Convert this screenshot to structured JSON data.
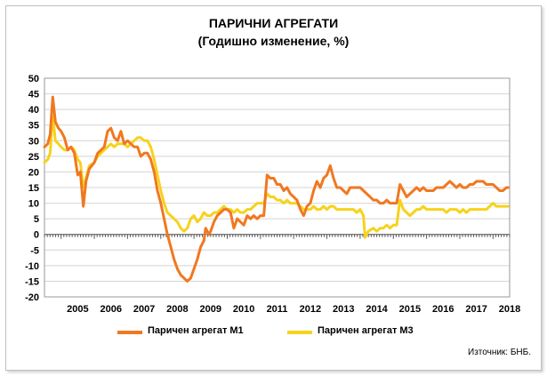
{
  "title": "ПАРИЧНИ АГРЕГАТИ",
  "subtitle": "(Годишно изменение, %)",
  "source": "Източник: БНБ.",
  "colors": {
    "m1": "#f07820",
    "m3": "#f7d21c"
  },
  "chart_data": {
    "type": "line",
    "title": "ПАРИЧНИ АГРЕГАТИ",
    "subtitle": "(Годишно изменение, %)",
    "xlabel": "",
    "ylabel": "",
    "ylim": [
      -20,
      50
    ],
    "yticks": [
      -20,
      -15,
      -10,
      -5,
      0,
      5,
      10,
      15,
      20,
      25,
      30,
      35,
      40,
      45,
      50
    ],
    "xlim": [
      2004.5,
      2018.5
    ],
    "xticks": [
      "2005",
      "2006",
      "2007",
      "2008",
      "2009",
      "2010",
      "2011",
      "2012",
      "2013",
      "2014",
      "2015",
      "2016",
      "2017",
      "2018"
    ],
    "grid": "horizontal",
    "legend": "bottom",
    "series": [
      {
        "name": "Паричен агрегат М1",
        "color": "#f07820",
        "points": [
          [
            2004.5,
            28
          ],
          [
            2004.6,
            29
          ],
          [
            2004.67,
            32
          ],
          [
            2004.75,
            44
          ],
          [
            2004.83,
            36
          ],
          [
            2004.92,
            34
          ],
          [
            2005.0,
            33
          ],
          [
            2005.1,
            31
          ],
          [
            2005.2,
            27
          ],
          [
            2005.3,
            28
          ],
          [
            2005.4,
            26
          ],
          [
            2005.5,
            19
          ],
          [
            2005.58,
            20
          ],
          [
            2005.67,
            9
          ],
          [
            2005.75,
            17
          ],
          [
            2005.85,
            21
          ],
          [
            2006.0,
            23
          ],
          [
            2006.1,
            26
          ],
          [
            2006.2,
            27
          ],
          [
            2006.3,
            28
          ],
          [
            2006.4,
            33
          ],
          [
            2006.5,
            34
          ],
          [
            2006.6,
            31
          ],
          [
            2006.7,
            30
          ],
          [
            2006.8,
            33
          ],
          [
            2006.9,
            29
          ],
          [
            2007.0,
            30
          ],
          [
            2007.1,
            29
          ],
          [
            2007.2,
            28
          ],
          [
            2007.3,
            28
          ],
          [
            2007.4,
            25
          ],
          [
            2007.5,
            26
          ],
          [
            2007.6,
            26
          ],
          [
            2007.7,
            24
          ],
          [
            2007.8,
            20
          ],
          [
            2007.9,
            14
          ],
          [
            2008.0,
            10
          ],
          [
            2008.1,
            5
          ],
          [
            2008.2,
            0
          ],
          [
            2008.3,
            -4
          ],
          [
            2008.4,
            -8
          ],
          [
            2008.5,
            -11
          ],
          [
            2008.6,
            -13
          ],
          [
            2008.7,
            -14
          ],
          [
            2008.8,
            -15
          ],
          [
            2008.9,
            -14
          ],
          [
            2009.0,
            -11
          ],
          [
            2009.1,
            -8
          ],
          [
            2009.2,
            -4
          ],
          [
            2009.3,
            -2
          ],
          [
            2009.35,
            2
          ],
          [
            2009.45,
            0
          ],
          [
            2009.5,
            1
          ],
          [
            2009.6,
            4
          ],
          [
            2009.7,
            6
          ],
          [
            2009.8,
            7
          ],
          [
            2009.9,
            8
          ],
          [
            2010.0,
            8
          ],
          [
            2010.1,
            7
          ],
          [
            2010.2,
            2
          ],
          [
            2010.3,
            5
          ],
          [
            2010.4,
            4
          ],
          [
            2010.5,
            3
          ],
          [
            2010.6,
            6
          ],
          [
            2010.7,
            5
          ],
          [
            2010.8,
            6
          ],
          [
            2010.9,
            5
          ],
          [
            2011.0,
            6
          ],
          [
            2011.1,
            6
          ],
          [
            2011.2,
            19
          ],
          [
            2011.3,
            18
          ],
          [
            2011.4,
            18
          ],
          [
            2011.5,
            16
          ],
          [
            2011.6,
            16
          ],
          [
            2011.7,
            14
          ],
          [
            2011.8,
            15
          ],
          [
            2011.9,
            13
          ],
          [
            2012.0,
            12
          ],
          [
            2012.1,
            11
          ],
          [
            2012.2,
            8
          ],
          [
            2012.3,
            6
          ],
          [
            2012.4,
            9
          ],
          [
            2012.5,
            10
          ],
          [
            2012.6,
            14
          ],
          [
            2012.7,
            17
          ],
          [
            2012.8,
            15
          ],
          [
            2012.9,
            18
          ],
          [
            2013.0,
            19
          ],
          [
            2013.1,
            22
          ],
          [
            2013.2,
            18
          ],
          [
            2013.3,
            15
          ],
          [
            2013.4,
            15
          ],
          [
            2013.5,
            14
          ],
          [
            2013.6,
            13
          ],
          [
            2013.7,
            15
          ],
          [
            2013.8,
            15
          ],
          [
            2013.9,
            15
          ],
          [
            2014.0,
            15
          ],
          [
            2014.1,
            14
          ],
          [
            2014.2,
            13
          ],
          [
            2014.3,
            12
          ],
          [
            2014.4,
            11
          ],
          [
            2014.5,
            11
          ],
          [
            2014.6,
            10
          ],
          [
            2014.7,
            10
          ],
          [
            2014.8,
            11
          ],
          [
            2014.9,
            10
          ],
          [
            2015.0,
            10
          ],
          [
            2015.1,
            10
          ],
          [
            2015.2,
            16
          ],
          [
            2015.3,
            14
          ],
          [
            2015.4,
            12
          ],
          [
            2015.5,
            13
          ],
          [
            2015.6,
            14
          ],
          [
            2015.7,
            15
          ],
          [
            2015.8,
            14
          ],
          [
            2015.9,
            15
          ],
          [
            2016.0,
            14
          ],
          [
            2016.1,
            14
          ],
          [
            2016.2,
            14
          ],
          [
            2016.3,
            15
          ],
          [
            2016.4,
            15
          ],
          [
            2016.5,
            15
          ],
          [
            2016.6,
            16
          ],
          [
            2016.7,
            17
          ],
          [
            2016.8,
            16
          ],
          [
            2016.9,
            15
          ],
          [
            2017.0,
            16
          ],
          [
            2017.1,
            15
          ],
          [
            2017.2,
            15
          ],
          [
            2017.3,
            16
          ],
          [
            2017.4,
            16
          ],
          [
            2017.5,
            17
          ],
          [
            2017.6,
            17
          ],
          [
            2017.7,
            17
          ],
          [
            2017.8,
            16
          ],
          [
            2017.9,
            16
          ],
          [
            2018.0,
            16
          ],
          [
            2018.1,
            15
          ],
          [
            2018.2,
            14
          ],
          [
            2018.3,
            14
          ],
          [
            2018.4,
            15
          ],
          [
            2018.45,
            15
          ]
        ]
      },
      {
        "name": "Паричен агрегат М3",
        "color": "#f7d21c",
        "points": [
          [
            2004.5,
            23
          ],
          [
            2004.6,
            24
          ],
          [
            2004.67,
            26
          ],
          [
            2004.75,
            38
          ],
          [
            2004.83,
            30
          ],
          [
            2004.92,
            29
          ],
          [
            2005.0,
            28
          ],
          [
            2005.1,
            27
          ],
          [
            2005.2,
            27
          ],
          [
            2005.3,
            28
          ],
          [
            2005.4,
            27
          ],
          [
            2005.5,
            24
          ],
          [
            2005.58,
            23
          ],
          [
            2005.67,
            15
          ],
          [
            2005.75,
            18
          ],
          [
            2005.85,
            22
          ],
          [
            2006.0,
            23
          ],
          [
            2006.1,
            25
          ],
          [
            2006.2,
            26
          ],
          [
            2006.3,
            27
          ],
          [
            2006.4,
            28
          ],
          [
            2006.5,
            29
          ],
          [
            2006.6,
            28
          ],
          [
            2006.7,
            29
          ],
          [
            2006.8,
            29
          ],
          [
            2006.9,
            29
          ],
          [
            2007.0,
            28
          ],
          [
            2007.1,
            29
          ],
          [
            2007.2,
            30
          ],
          [
            2007.3,
            31
          ],
          [
            2007.4,
            31
          ],
          [
            2007.5,
            30
          ],
          [
            2007.6,
            30
          ],
          [
            2007.7,
            28
          ],
          [
            2007.8,
            24
          ],
          [
            2007.9,
            19
          ],
          [
            2008.0,
            14
          ],
          [
            2008.1,
            10
          ],
          [
            2008.2,
            7
          ],
          [
            2008.3,
            6
          ],
          [
            2008.4,
            5
          ],
          [
            2008.5,
            4
          ],
          [
            2008.6,
            2
          ],
          [
            2008.7,
            1
          ],
          [
            2008.8,
            2
          ],
          [
            2008.9,
            5
          ],
          [
            2009.0,
            6
          ],
          [
            2009.1,
            4
          ],
          [
            2009.2,
            5
          ],
          [
            2009.3,
            7
          ],
          [
            2009.4,
            6
          ],
          [
            2009.5,
            6
          ],
          [
            2009.6,
            7
          ],
          [
            2009.7,
            7
          ],
          [
            2009.8,
            8
          ],
          [
            2009.9,
            9
          ],
          [
            2010.0,
            8
          ],
          [
            2010.1,
            8
          ],
          [
            2010.2,
            7
          ],
          [
            2010.3,
            8
          ],
          [
            2010.4,
            7
          ],
          [
            2010.5,
            7
          ],
          [
            2010.6,
            8
          ],
          [
            2010.7,
            8
          ],
          [
            2010.8,
            9
          ],
          [
            2010.9,
            10
          ],
          [
            2011.0,
            10
          ],
          [
            2011.1,
            10
          ],
          [
            2011.2,
            13
          ],
          [
            2011.3,
            12
          ],
          [
            2011.4,
            12
          ],
          [
            2011.5,
            11
          ],
          [
            2011.6,
            11
          ],
          [
            2011.7,
            10
          ],
          [
            2011.8,
            11
          ],
          [
            2011.9,
            10
          ],
          [
            2012.0,
            10
          ],
          [
            2012.1,
            10
          ],
          [
            2012.2,
            9
          ],
          [
            2012.3,
            8
          ],
          [
            2012.4,
            8
          ],
          [
            2012.5,
            8
          ],
          [
            2012.6,
            9
          ],
          [
            2012.7,
            8
          ],
          [
            2012.8,
            8
          ],
          [
            2012.9,
            9
          ],
          [
            2013.0,
            8
          ],
          [
            2013.1,
            9
          ],
          [
            2013.2,
            9
          ],
          [
            2013.3,
            8
          ],
          [
            2013.4,
            8
          ],
          [
            2013.5,
            8
          ],
          [
            2013.6,
            8
          ],
          [
            2013.7,
            8
          ],
          [
            2013.8,
            8
          ],
          [
            2013.9,
            7
          ],
          [
            2014.0,
            8
          ],
          [
            2014.1,
            6
          ],
          [
            2014.15,
            -1
          ],
          [
            2014.25,
            1
          ],
          [
            2014.4,
            2
          ],
          [
            2014.5,
            1
          ],
          [
            2014.6,
            2
          ],
          [
            2014.7,
            2
          ],
          [
            2014.8,
            3
          ],
          [
            2014.9,
            2
          ],
          [
            2015.0,
            3
          ],
          [
            2015.1,
            3
          ],
          [
            2015.2,
            11
          ],
          [
            2015.3,
            8
          ],
          [
            2015.4,
            7
          ],
          [
            2015.5,
            6
          ],
          [
            2015.6,
            7
          ],
          [
            2015.7,
            8
          ],
          [
            2015.8,
            8
          ],
          [
            2015.9,
            9
          ],
          [
            2016.0,
            8
          ],
          [
            2016.1,
            8
          ],
          [
            2016.2,
            8
          ],
          [
            2016.3,
            8
          ],
          [
            2016.4,
            8
          ],
          [
            2016.5,
            8
          ],
          [
            2016.6,
            7
          ],
          [
            2016.7,
            8
          ],
          [
            2016.8,
            8
          ],
          [
            2016.9,
            8
          ],
          [
            2017.0,
            7
          ],
          [
            2017.1,
            8
          ],
          [
            2017.2,
            7
          ],
          [
            2017.3,
            8
          ],
          [
            2017.4,
            8
          ],
          [
            2017.5,
            8
          ],
          [
            2017.6,
            8
          ],
          [
            2017.7,
            8
          ],
          [
            2017.8,
            8
          ],
          [
            2017.9,
            9
          ],
          [
            2018.0,
            10
          ],
          [
            2018.1,
            9
          ],
          [
            2018.2,
            9
          ],
          [
            2018.3,
            9
          ],
          [
            2018.4,
            9
          ],
          [
            2018.45,
            9
          ]
        ]
      }
    ]
  }
}
